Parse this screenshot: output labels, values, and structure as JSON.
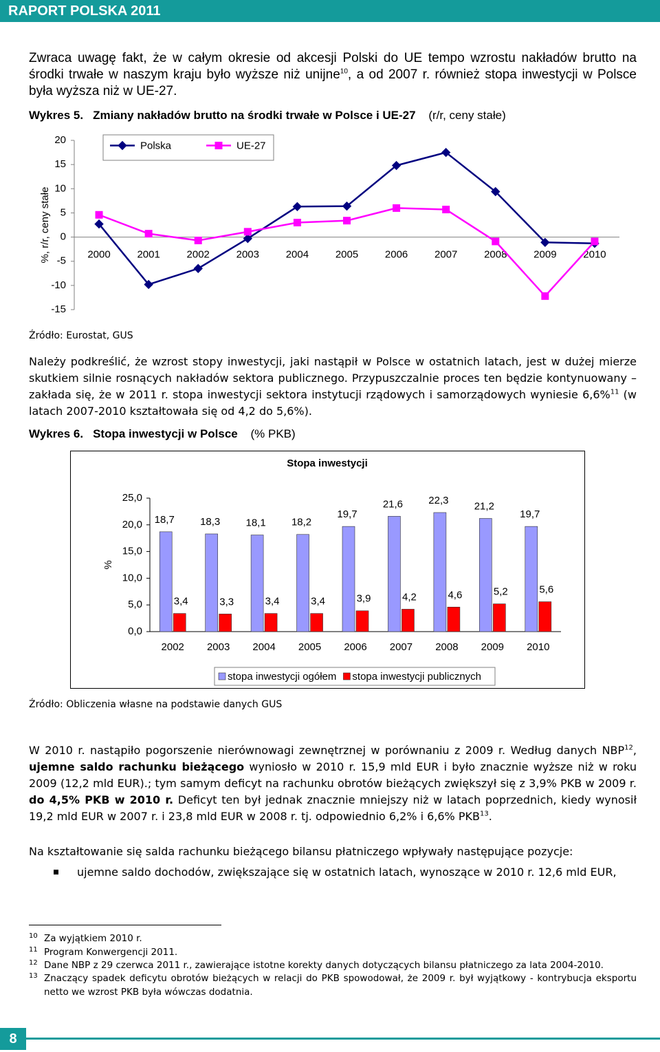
{
  "header": {
    "title": "RAPORT POLSKA 2011"
  },
  "paragraphs": [
    [
      "Zwraca uwagę fakt, że w całym okresie od akcesji Polski do UE tempo wzrostu nakładów  brutto na środki trwałe w naszym kraju było wyższe niż unijne",
      "10",
      ", a od 2007 r. również  stopa inwestycji  w Polsce była wyższa niż w UE-27."
    ],
    [
      "Należy podkreślić, że wzrost stopy inwestycji, jaki nastąpił w Polsce w ostatnich latach, jest w dużej mierze skutkiem silnie rosnących nakładów sektora publicznego. Przypuszczalnie proces ten będzie kontynuowany – zakłada się, że w 2011 r. stopa inwestycji sektora instytucji rządowych i samorządowych wyniesie 6,6%",
      "11",
      " (w latach 2007-2010 kształtowała się od 4,2 do 5,6%)."
    ],
    [
      "W 2010 r. nastąpiło pogorszenie nierównowagi zewnętrznej w porównaniu z 2009 r. Według danych NBP",
      "12",
      ", ",
      "ujemne saldo rachunku bieżącego",
      " wyniosło w 2010 r. 15,9 mld EUR i było znacznie wyższe niż w roku 2009 (12,2 mld EUR).; tym samym deficyt na rachunku obrotów bieżących zwiększył się z 3,9% PKB w 2009 r. ",
      "do 4,5% PKB w 2010 r.",
      " Deficyt ten był jednak znacznie mniejszy niż w latach poprzednich, kiedy wynosił 19,2 mld EUR w 2007 r. i 23,8 mld EUR w 2008 r. tj. odpowiednio 6,2% i 6,6% PKB",
      "13",
      "."
    ],
    [
      "Na kształtowanie się salda rachunku bieżącego bilansu płatniczego wpływały następujące pozycje:"
    ]
  ],
  "bullets": [
    "ujemne saldo dochodów, zwiększające się w ostatnich latach, wynoszące w 2010 r. 12,6 mld EUR,"
  ],
  "chart_data": [
    {
      "type": "line",
      "caption_label": "Wykres 5.",
      "caption": "Zmiany nakładów brutto na środki trwałe w Polsce i UE-27",
      "caption_note": "(r/r, ceny stałe)",
      "y_label": "%, r/r, ceny stałe",
      "categories": [
        "2000",
        "2001",
        "2002",
        "2003",
        "2004",
        "2005",
        "2006",
        "2007",
        "2008",
        "2009",
        "2010"
      ],
      "series": [
        {
          "name": "Polska",
          "color": "#000080",
          "marker": "diamond",
          "values": [
            2.7,
            -9.8,
            -6.5,
            -0.3,
            6.3,
            6.4,
            14.8,
            17.5,
            9.4,
            -1.1,
            -1.3
          ]
        },
        {
          "name": "UE-27",
          "color": "#ff00ff",
          "marker": "square",
          "values": [
            4.6,
            0.7,
            -0.7,
            1.1,
            3.0,
            3.4,
            6.0,
            5.7,
            -0.9,
            -12.2,
            -0.9
          ]
        }
      ],
      "ylim": [
        -15,
        20
      ],
      "yticks": [
        -15,
        -10,
        -5,
        0,
        5,
        10,
        15,
        20
      ],
      "grid": false,
      "legend": "top-left",
      "source": "Źródło: Eurostat, GUS"
    },
    {
      "type": "bar",
      "caption_label": "Wykres 6.",
      "caption": "Stopa inwestycji w Polsce",
      "caption_note": "(% PKB)",
      "title": "Stopa inwestycji",
      "y_label": "%",
      "categories": [
        "2002",
        "2003",
        "2004",
        "2005",
        "2006",
        "2007",
        "2008",
        "2009",
        "2010"
      ],
      "series": [
        {
          "name": "stopa inwestycji ogółem",
          "color": "#9999ff",
          "values": [
            18.7,
            18.3,
            18.1,
            18.2,
            19.7,
            21.6,
            22.3,
            21.2,
            19.7
          ],
          "value_labels": [
            "18,7",
            "18,3",
            "18,1",
            "18,2",
            "19,7",
            "21,6",
            "22,3",
            "21,2",
            "19,7"
          ]
        },
        {
          "name": "stopa inwestycji publicznych",
          "color": "#ff0000",
          "values": [
            3.4,
            3.3,
            3.4,
            3.4,
            3.9,
            4.2,
            4.6,
            5.2,
            5.6
          ],
          "value_labels": [
            "3,4",
            "3,3",
            "3,4",
            "3,4",
            "3,9",
            "4,2",
            "4,6",
            "5,2",
            "5,6"
          ]
        }
      ],
      "ylim": [
        0,
        25
      ],
      "yticks": [
        {
          "value": 0,
          "label": "0,0"
        },
        {
          "value": 5,
          "label": "5,0"
        },
        {
          "value": 10,
          "label": "10,0"
        },
        {
          "value": 15,
          "label": "15,0"
        },
        {
          "value": 20,
          "label": "20,0"
        },
        {
          "value": 25,
          "label": "25,0"
        }
      ],
      "grid": false,
      "legend": "bottom",
      "source": "Źródło: Obliczenia własne na podstawie danych GUS"
    }
  ],
  "footnotes": [
    {
      "number": "10",
      "text": "Za wyjątkiem 2010 r."
    },
    {
      "number": "11",
      "text": "Program Konwergencji 2011."
    },
    {
      "number": "12",
      "text": "Dane NBP z 29 czerwca 2011 r., zawierające istotne korekty danych dotyczących bilansu płatniczego za lata 2004-2010."
    },
    {
      "number": "13",
      "text": "Znaczący spadek deficytu obrotów bieżących w relacji do PKB spowodował, że 2009 r. był  wyjątkowy -  kontrybucja eksportu netto we wzrost PKB była wówczas dodatnia."
    }
  ],
  "page_number": "8"
}
